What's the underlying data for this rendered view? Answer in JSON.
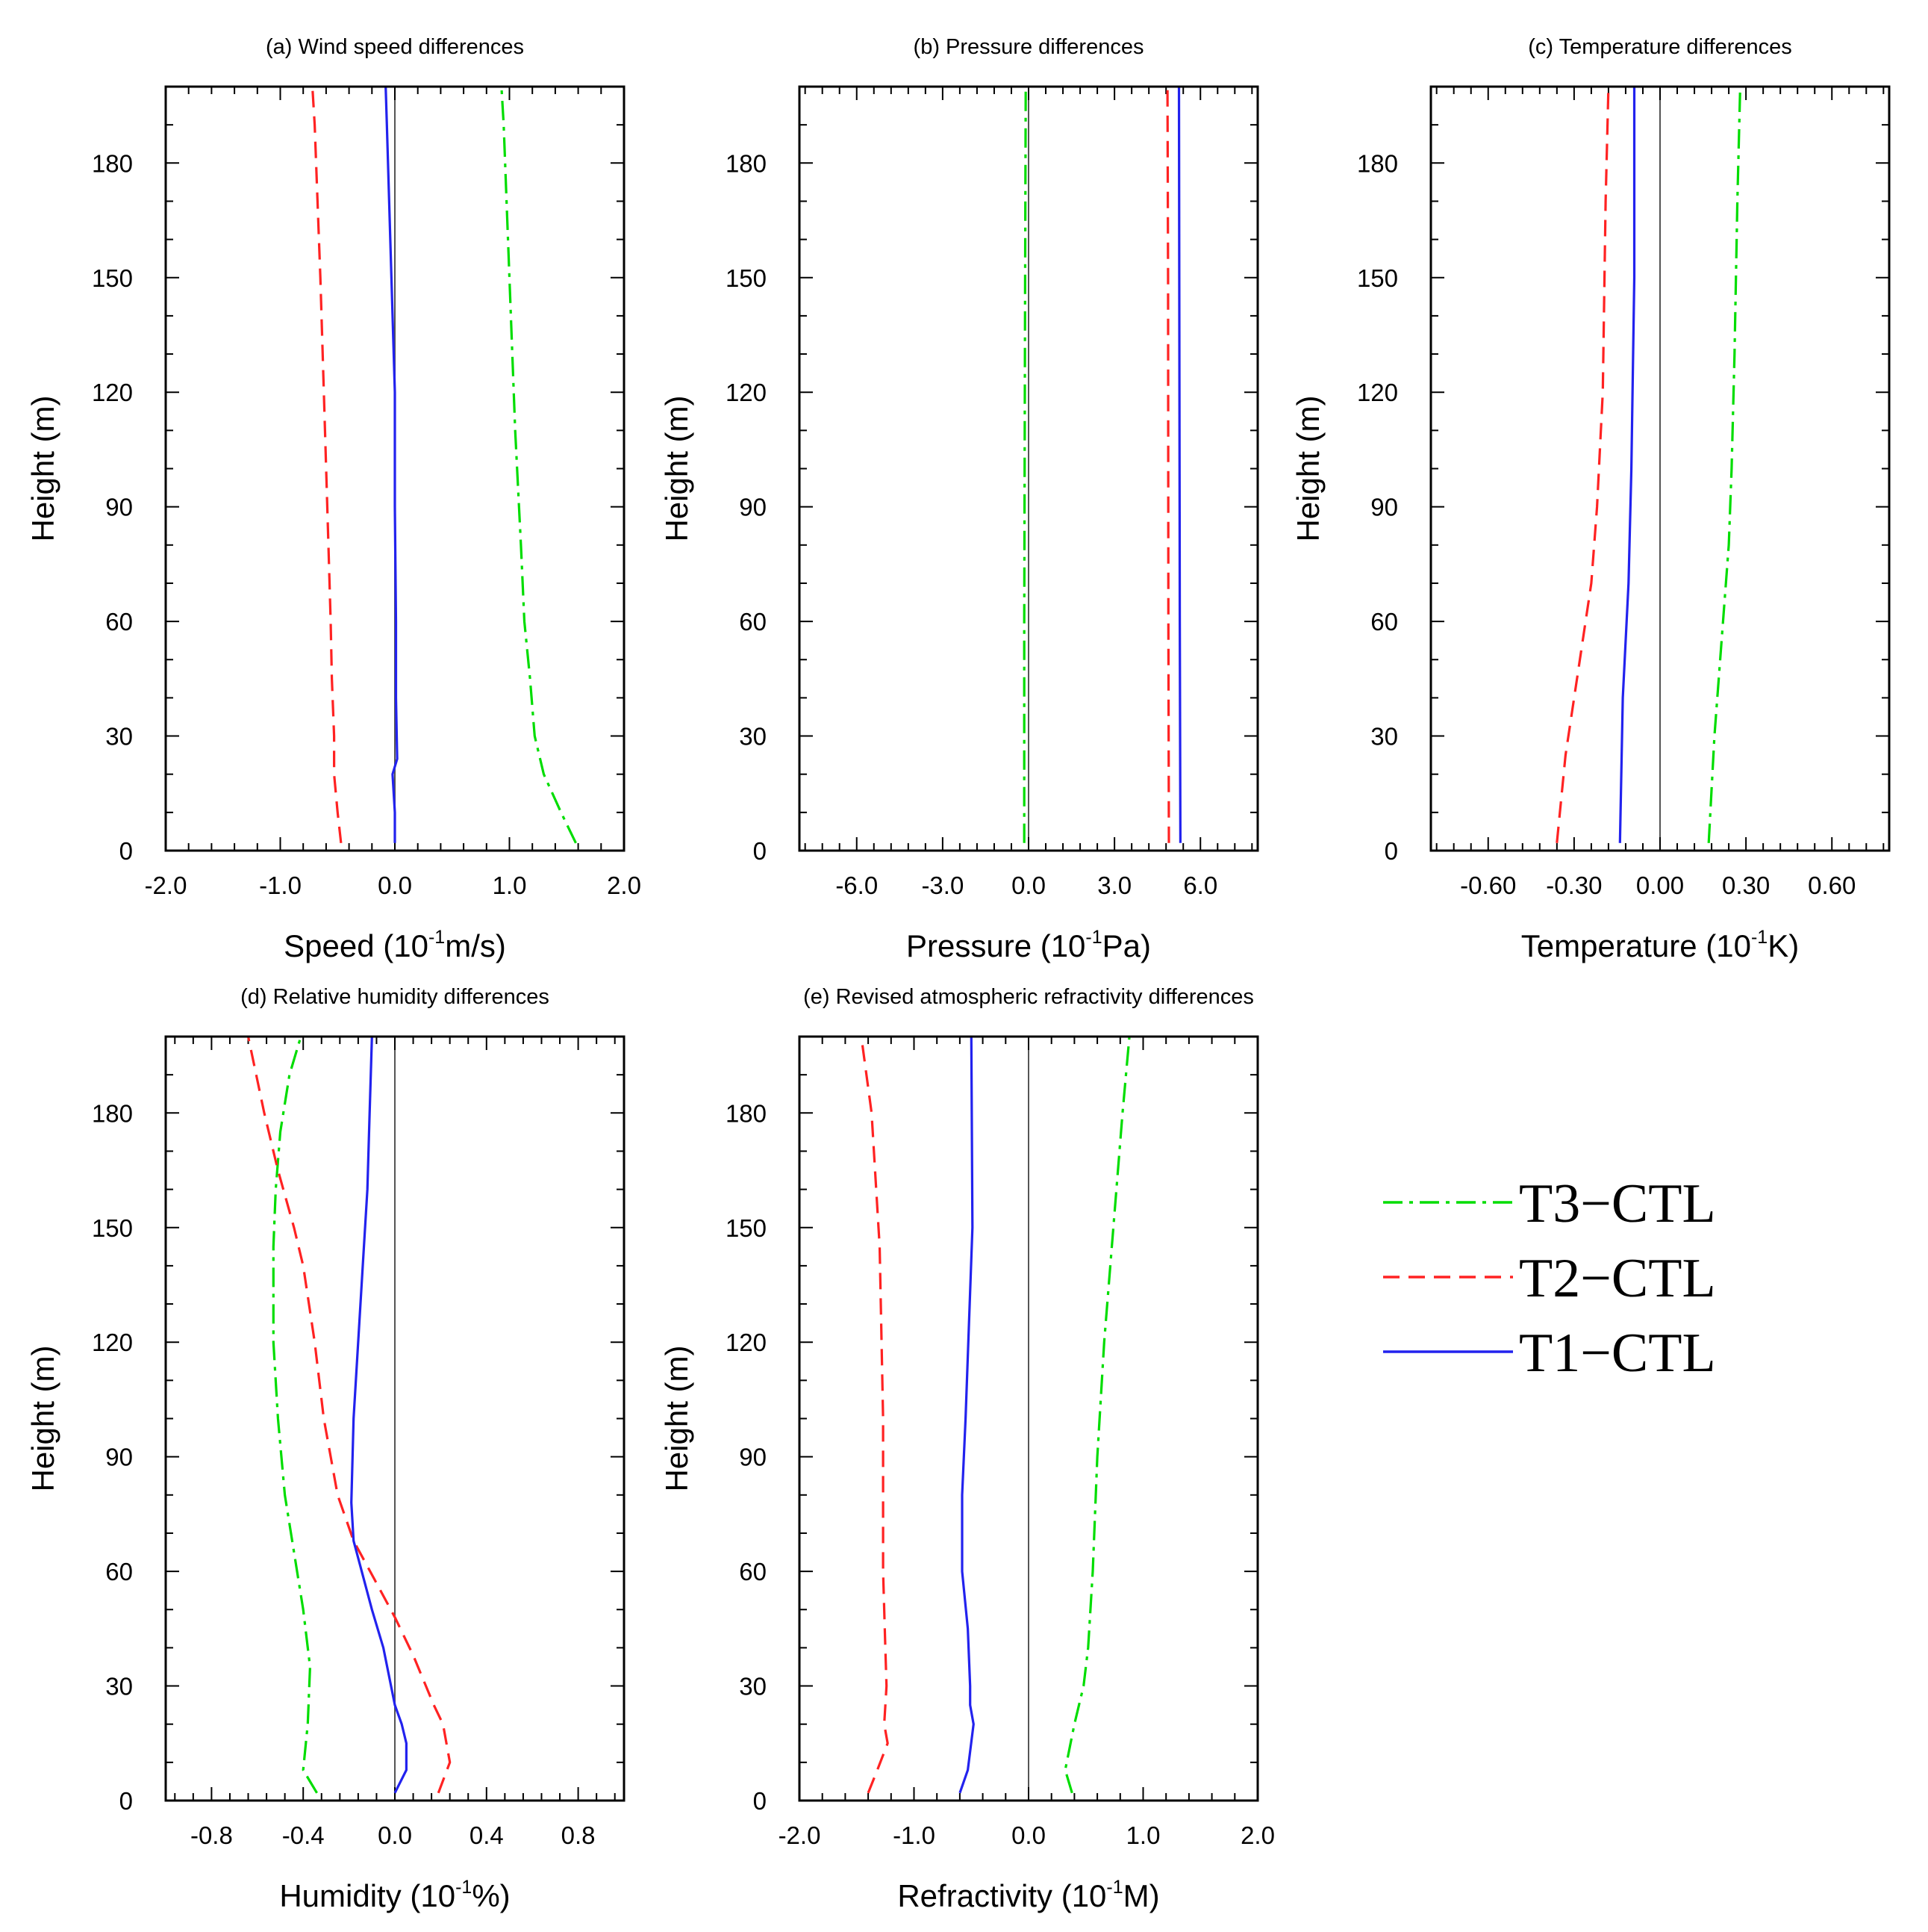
{
  "colors": {
    "T3": "#00dd00",
    "T2": "#ff2222",
    "T1": "#2222ee",
    "axis": "#000000",
    "zero": "#555555"
  },
  "legend": [
    {
      "key": "T3",
      "label": "T3−CTL",
      "dash": "dashdot"
    },
    {
      "key": "T2",
      "label": "T2−CTL",
      "dash": "dashed"
    },
    {
      "key": "T1",
      "label": "T1−CTL",
      "dash": "solid"
    }
  ],
  "chart_data": [
    {
      "type": "line",
      "title": "(a) Wind speed differences",
      "xlabel": "Speed (10",
      "xlabel_sup": "-1",
      "xlabel_end": "m/s)",
      "ylabel": "Height (m)",
      "xlim": [
        -2.0,
        2.0
      ],
      "ylim": [
        0,
        200
      ],
      "xticks": [
        "-2.0",
        "-1.0",
        "0.0",
        "1.0",
        "2.0"
      ],
      "xtick_values": [
        -2,
        -1,
        0,
        1,
        2
      ],
      "yticks": [
        "0",
        "30",
        "60",
        "90",
        "120",
        "150",
        "180"
      ],
      "ytick_values": [
        0,
        30,
        60,
        90,
        120,
        150,
        180
      ],
      "series": [
        {
          "name": "T3−CTL",
          "key": "T3",
          "x": [
            1.58,
            1.45,
            1.3,
            1.22,
            1.18,
            1.13,
            1.1,
            1.05,
            1.0,
            0.95,
            0.93
          ],
          "y": [
            2,
            10,
            20,
            30,
            45,
            60,
            80,
            110,
            150,
            190,
            200
          ]
        },
        {
          "name": "T2−CTL",
          "key": "T2",
          "x": [
            -0.47,
            -0.5,
            -0.53,
            -0.53,
            -0.55,
            -0.56,
            -0.58,
            -0.61,
            -0.65,
            -0.7,
            -0.72
          ],
          "y": [
            2,
            10,
            20,
            30,
            45,
            60,
            80,
            110,
            150,
            190,
            200
          ]
        },
        {
          "name": "T1−CTL",
          "key": "T1",
          "x": [
            0.0,
            0.0,
            -0.02,
            0.02,
            0.01,
            0.01,
            0.0,
            0.0,
            -0.03,
            -0.07,
            -0.08
          ],
          "y": [
            2,
            10,
            20,
            24,
            40,
            60,
            90,
            120,
            150,
            190,
            200
          ]
        }
      ]
    },
    {
      "type": "line",
      "title": "(b) Pressure differences",
      "xlabel": "Pressure (10",
      "xlabel_sup": "-1",
      "xlabel_end": "Pa)",
      "ylabel": "Height (m)",
      "xlim": [
        -8.0,
        8.0
      ],
      "ylim": [
        0,
        200
      ],
      "xticks": [
        "-6.0",
        "-3.0",
        "0.0",
        "3.0",
        "6.0"
      ],
      "xtick_values": [
        -6,
        -3,
        0,
        3,
        6
      ],
      "yticks": [
        "0",
        "30",
        "60",
        "90",
        "120",
        "150",
        "180"
      ],
      "ytick_values": [
        0,
        30,
        60,
        90,
        120,
        150,
        180
      ],
      "series": [
        {
          "name": "T3−CTL",
          "key": "T3",
          "x": [
            -0.15,
            -0.15,
            -0.12,
            -0.1
          ],
          "y": [
            2,
            60,
            150,
            200
          ]
        },
        {
          "name": "T2−CTL",
          "key": "T2",
          "x": [
            4.9,
            4.88,
            4.87,
            4.85
          ],
          "y": [
            2,
            60,
            150,
            200
          ]
        },
        {
          "name": "T1−CTL",
          "key": "T1",
          "x": [
            5.3,
            5.28,
            5.26,
            5.25
          ],
          "y": [
            2,
            60,
            150,
            200
          ]
        }
      ]
    },
    {
      "type": "line",
      "title": "(c) Temperature differences",
      "xlabel": "Temperature (10",
      "xlabel_sup": "-1",
      "xlabel_end": "K)",
      "ylabel": "Height (m)",
      "xlim": [
        -0.8,
        0.8
      ],
      "ylim": [
        0,
        200
      ],
      "xticks": [
        "-0.60",
        "-0.30",
        "0.00",
        "0.30",
        "0.60"
      ],
      "xtick_values": [
        -0.6,
        -0.3,
        0,
        0.3,
        0.6
      ],
      "yticks": [
        "0",
        "30",
        "60",
        "90",
        "120",
        "150",
        "180"
      ],
      "ytick_values": [
        0,
        30,
        60,
        90,
        120,
        150,
        180
      ],
      "series": [
        {
          "name": "T3−CTL",
          "key": "T3",
          "x": [
            0.17,
            0.19,
            0.22,
            0.24,
            0.25,
            0.26,
            0.27,
            0.28
          ],
          "y": [
            2,
            30,
            60,
            80,
            100,
            130,
            170,
            200
          ]
        },
        {
          "name": "T2−CTL",
          "key": "T2",
          "x": [
            -0.36,
            -0.33,
            -0.28,
            -0.24,
            -0.22,
            -0.2,
            -0.19,
            -0.18
          ],
          "y": [
            2,
            25,
            50,
            70,
            90,
            120,
            170,
            200
          ]
        },
        {
          "name": "T1−CTL",
          "key": "T1",
          "x": [
            -0.14,
            -0.13,
            -0.11,
            -0.1,
            -0.09,
            -0.09
          ],
          "y": [
            2,
            40,
            70,
            100,
            150,
            200
          ]
        }
      ]
    },
    {
      "type": "line",
      "title": "(d) Relative humidity differences",
      "xlabel": "Humidity (10",
      "xlabel_sup": "-1",
      "xlabel_end": "%)",
      "ylabel": "Height (m)",
      "xlim": [
        -1.0,
        1.0
      ],
      "ylim": [
        0,
        200
      ],
      "xticks": [
        "-0.8",
        "-0.4",
        "0.0",
        "0.4",
        "0.8"
      ],
      "xtick_values": [
        -0.8,
        -0.4,
        0,
        0.4,
        0.8
      ],
      "yticks": [
        "0",
        "30",
        "60",
        "90",
        "120",
        "150",
        "180"
      ],
      "ytick_values": [
        0,
        30,
        60,
        90,
        120,
        150,
        180
      ],
      "series": [
        {
          "name": "T3−CTL",
          "key": "T3",
          "x": [
            -0.34,
            -0.4,
            -0.38,
            -0.37,
            -0.4,
            -0.44,
            -0.48,
            -0.51,
            -0.53,
            -0.53,
            -0.52,
            -0.5,
            -0.46,
            -0.41
          ],
          "y": [
            2,
            8,
            20,
            35,
            50,
            65,
            80,
            100,
            120,
            145,
            160,
            175,
            190,
            200
          ]
        },
        {
          "name": "T2−CTL",
          "key": "T2",
          "x": [
            0.19,
            0.24,
            0.21,
            0.17,
            0.08,
            0.0,
            -0.09,
            -0.18,
            -0.25,
            -0.31,
            -0.35,
            -0.4,
            -0.44,
            -0.51,
            -0.57,
            -0.64
          ],
          "y": [
            2,
            10,
            20,
            25,
            38,
            48,
            58,
            68,
            80,
            100,
            120,
            140,
            150,
            165,
            180,
            200
          ]
        },
        {
          "name": "T1−CTL",
          "key": "T1",
          "x": [
            0.0,
            0.05,
            0.05,
            0.03,
            0.0,
            -0.05,
            -0.1,
            -0.18,
            -0.19,
            -0.18,
            -0.14,
            -0.12,
            -0.11,
            -0.1
          ],
          "y": [
            2,
            8,
            15,
            20,
            25,
            40,
            50,
            68,
            78,
            100,
            140,
            160,
            180,
            200
          ]
        }
      ]
    },
    {
      "type": "line",
      "title": "(e) Revised atmospheric refractivity differences",
      "xlabel": "Refractivity (10",
      "xlabel_sup": "-1",
      "xlabel_end": "M)",
      "ylabel": "Height (m)",
      "xlim": [
        -2.0,
        2.0
      ],
      "ylim": [
        0,
        200
      ],
      "xticks": [
        "-2.0",
        "-1.0",
        "0.0",
        "1.0",
        "2.0"
      ],
      "xtick_values": [
        -2,
        -1,
        0,
        1,
        2
      ],
      "yticks": [
        "0",
        "30",
        "60",
        "90",
        "120",
        "150",
        "180"
      ],
      "ytick_values": [
        0,
        30,
        60,
        90,
        120,
        150,
        180
      ],
      "series": [
        {
          "name": "T3−CTL",
          "key": "T3",
          "x": [
            0.38,
            0.32,
            0.4,
            0.48,
            0.52,
            0.56,
            0.6,
            0.66,
            0.74,
            0.82,
            0.88
          ],
          "y": [
            2,
            8,
            20,
            30,
            40,
            60,
            90,
            120,
            150,
            180,
            200
          ]
        },
        {
          "name": "T2−CTL",
          "key": "T2",
          "x": [
            -1.4,
            -1.32,
            -1.23,
            -1.26,
            -1.24,
            -1.25,
            -1.27,
            -1.27,
            -1.3,
            -1.37,
            -1.46
          ],
          "y": [
            2,
            8,
            15,
            20,
            30,
            40,
            60,
            100,
            145,
            180,
            200
          ]
        },
        {
          "name": "T1−CTL",
          "key": "T1",
          "x": [
            -0.6,
            -0.53,
            -0.48,
            -0.51,
            -0.51,
            -0.53,
            -0.58,
            -0.58,
            -0.55,
            -0.49,
            -0.5
          ],
          "y": [
            2,
            8,
            20,
            25,
            30,
            45,
            60,
            80,
            100,
            150,
            200
          ]
        }
      ]
    }
  ]
}
